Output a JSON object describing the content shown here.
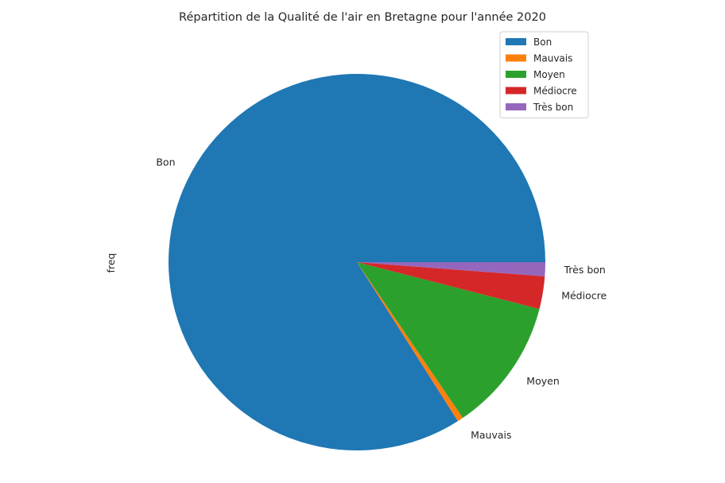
{
  "chart_data": {
    "type": "pie",
    "title": "Répartition de la Qualité de l'air en Bretagne pour l'année 2020",
    "ylabel": "freq",
    "legend_position": "top-right",
    "slices": [
      {
        "label": "Bon",
        "value": 84.0,
        "color": "#1f77b4"
      },
      {
        "label": "Mauvais",
        "value": 0.5,
        "color": "#ff7f0e"
      },
      {
        "label": "Moyen",
        "value": 11.5,
        "color": "#2ca02c"
      },
      {
        "label": "Médiocre",
        "value": 2.8,
        "color": "#d62728"
      },
      {
        "label": "Très bon",
        "value": 1.2,
        "color": "#9467bd"
      }
    ]
  }
}
